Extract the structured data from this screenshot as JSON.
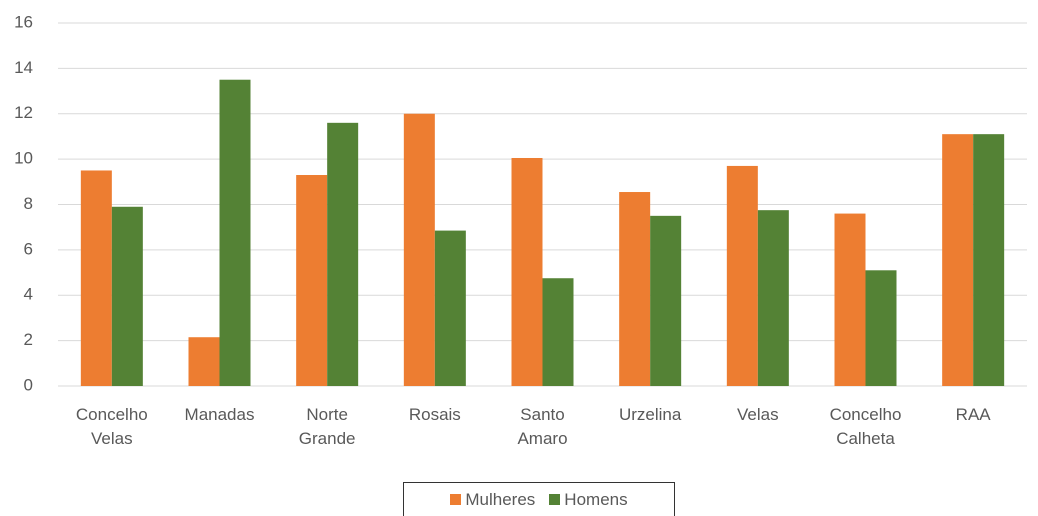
{
  "chart_data": {
    "type": "bar",
    "categories": [
      "Concelho Velas",
      "Manadas",
      "Norte Grande",
      "Rosais",
      "Santo Amaro",
      "Urzelina",
      "Velas",
      "Concelho Calheta",
      "RAA"
    ],
    "series": [
      {
        "name": "Mulheres",
        "color": "#ed7d31",
        "values": [
          9.5,
          2.15,
          9.3,
          12.0,
          10.05,
          8.55,
          9.7,
          7.6,
          11.1
        ]
      },
      {
        "name": "Homens",
        "color": "#548235",
        "values": [
          7.9,
          13.5,
          11.6,
          6.85,
          4.75,
          7.5,
          7.75,
          5.1,
          11.1
        ]
      }
    ],
    "ylim": [
      0,
      16
    ],
    "yticks": [
      0,
      2,
      4,
      6,
      8,
      10,
      12,
      14,
      16
    ],
    "grid": true,
    "legend": "bottom"
  }
}
